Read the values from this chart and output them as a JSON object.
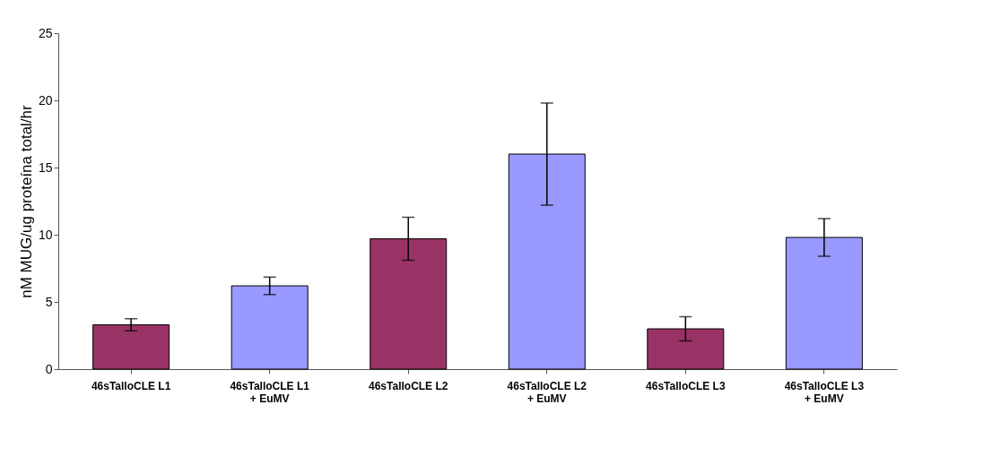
{
  "chart_data": {
    "type": "bar",
    "ylabel": "nM MUG/ug proteína total/hr",
    "categories": [
      "46sTalloCLE L1",
      "46sTalloCLE L1 + EuMV",
      "46sTalloCLE L2",
      "46sTalloCLE L2 + EuMV",
      "46sTalloCLE L3",
      "46sTalloCLE L3 + EuMV"
    ],
    "values": [
      3.3,
      6.2,
      9.7,
      16.0,
      3.0,
      9.8
    ],
    "errors": [
      0.45,
      0.65,
      1.6,
      3.8,
      0.9,
      1.4
    ],
    "colors": [
      "#993366",
      "#9999ff",
      "#993366",
      "#9999ff",
      "#993366",
      "#9999ff"
    ],
    "ylim": [
      0,
      25
    ],
    "yticks": [
      0,
      5,
      10,
      15,
      20,
      25
    ],
    "grid": false
  }
}
